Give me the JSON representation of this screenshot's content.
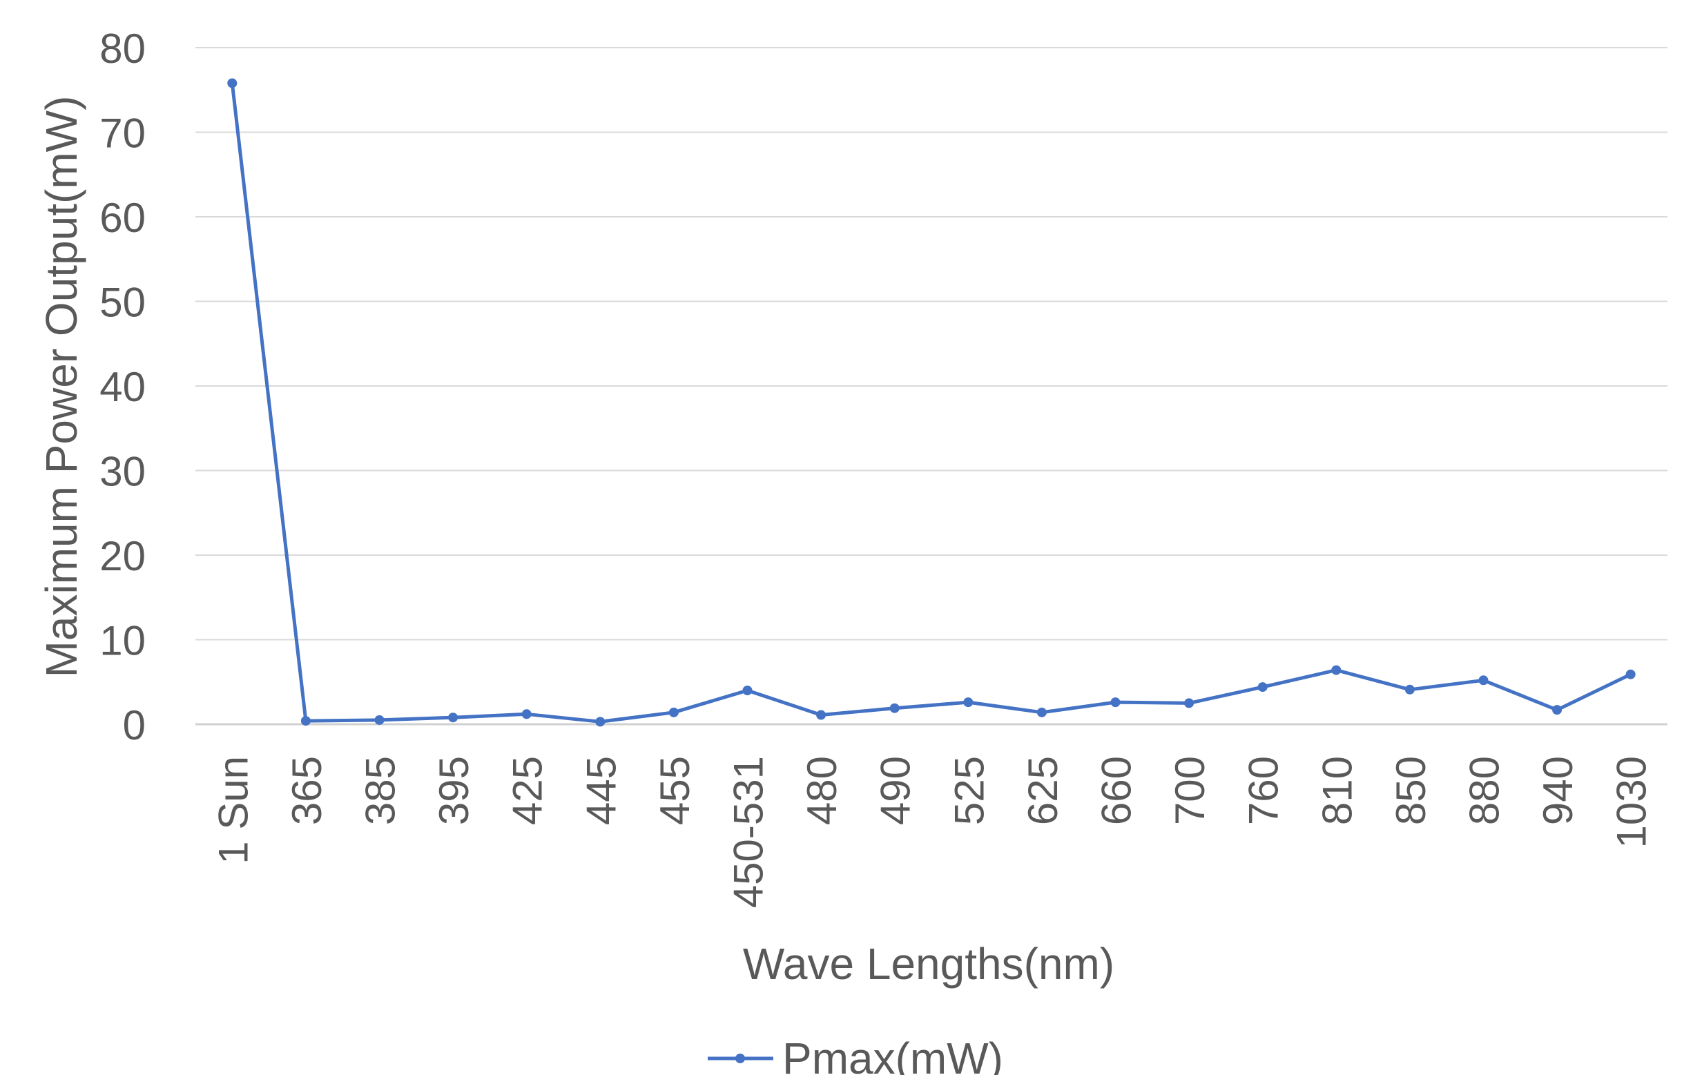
{
  "chart_data": {
    "type": "line",
    "title": "",
    "xlabel": "Wave Lengths(nm)",
    "ylabel": "Maximum Power Output(mW)",
    "ylim": [
      0,
      80
    ],
    "yticks": [
      "0",
      "10",
      "20",
      "30",
      "40",
      "50",
      "60",
      "70",
      "80"
    ],
    "grid": true,
    "legend_position": "bottom",
    "categories": [
      "1 Sun",
      "365",
      "385",
      "395",
      "425",
      "445",
      "455",
      "450-531",
      "480",
      "490",
      "525",
      "625",
      "660",
      "700",
      "760",
      "810",
      "850",
      "880",
      "940",
      "1030"
    ],
    "series": [
      {
        "name": "Pmax(mW)",
        "color": "#4472C4",
        "values": [
          75.8,
          0.4,
          0.5,
          0.8,
          1.2,
          0.3,
          1.4,
          4.0,
          1.1,
          1.9,
          2.6,
          1.4,
          2.6,
          2.5,
          4.4,
          6.4,
          4.1,
          5.2,
          1.7,
          5.9
        ]
      }
    ]
  }
}
